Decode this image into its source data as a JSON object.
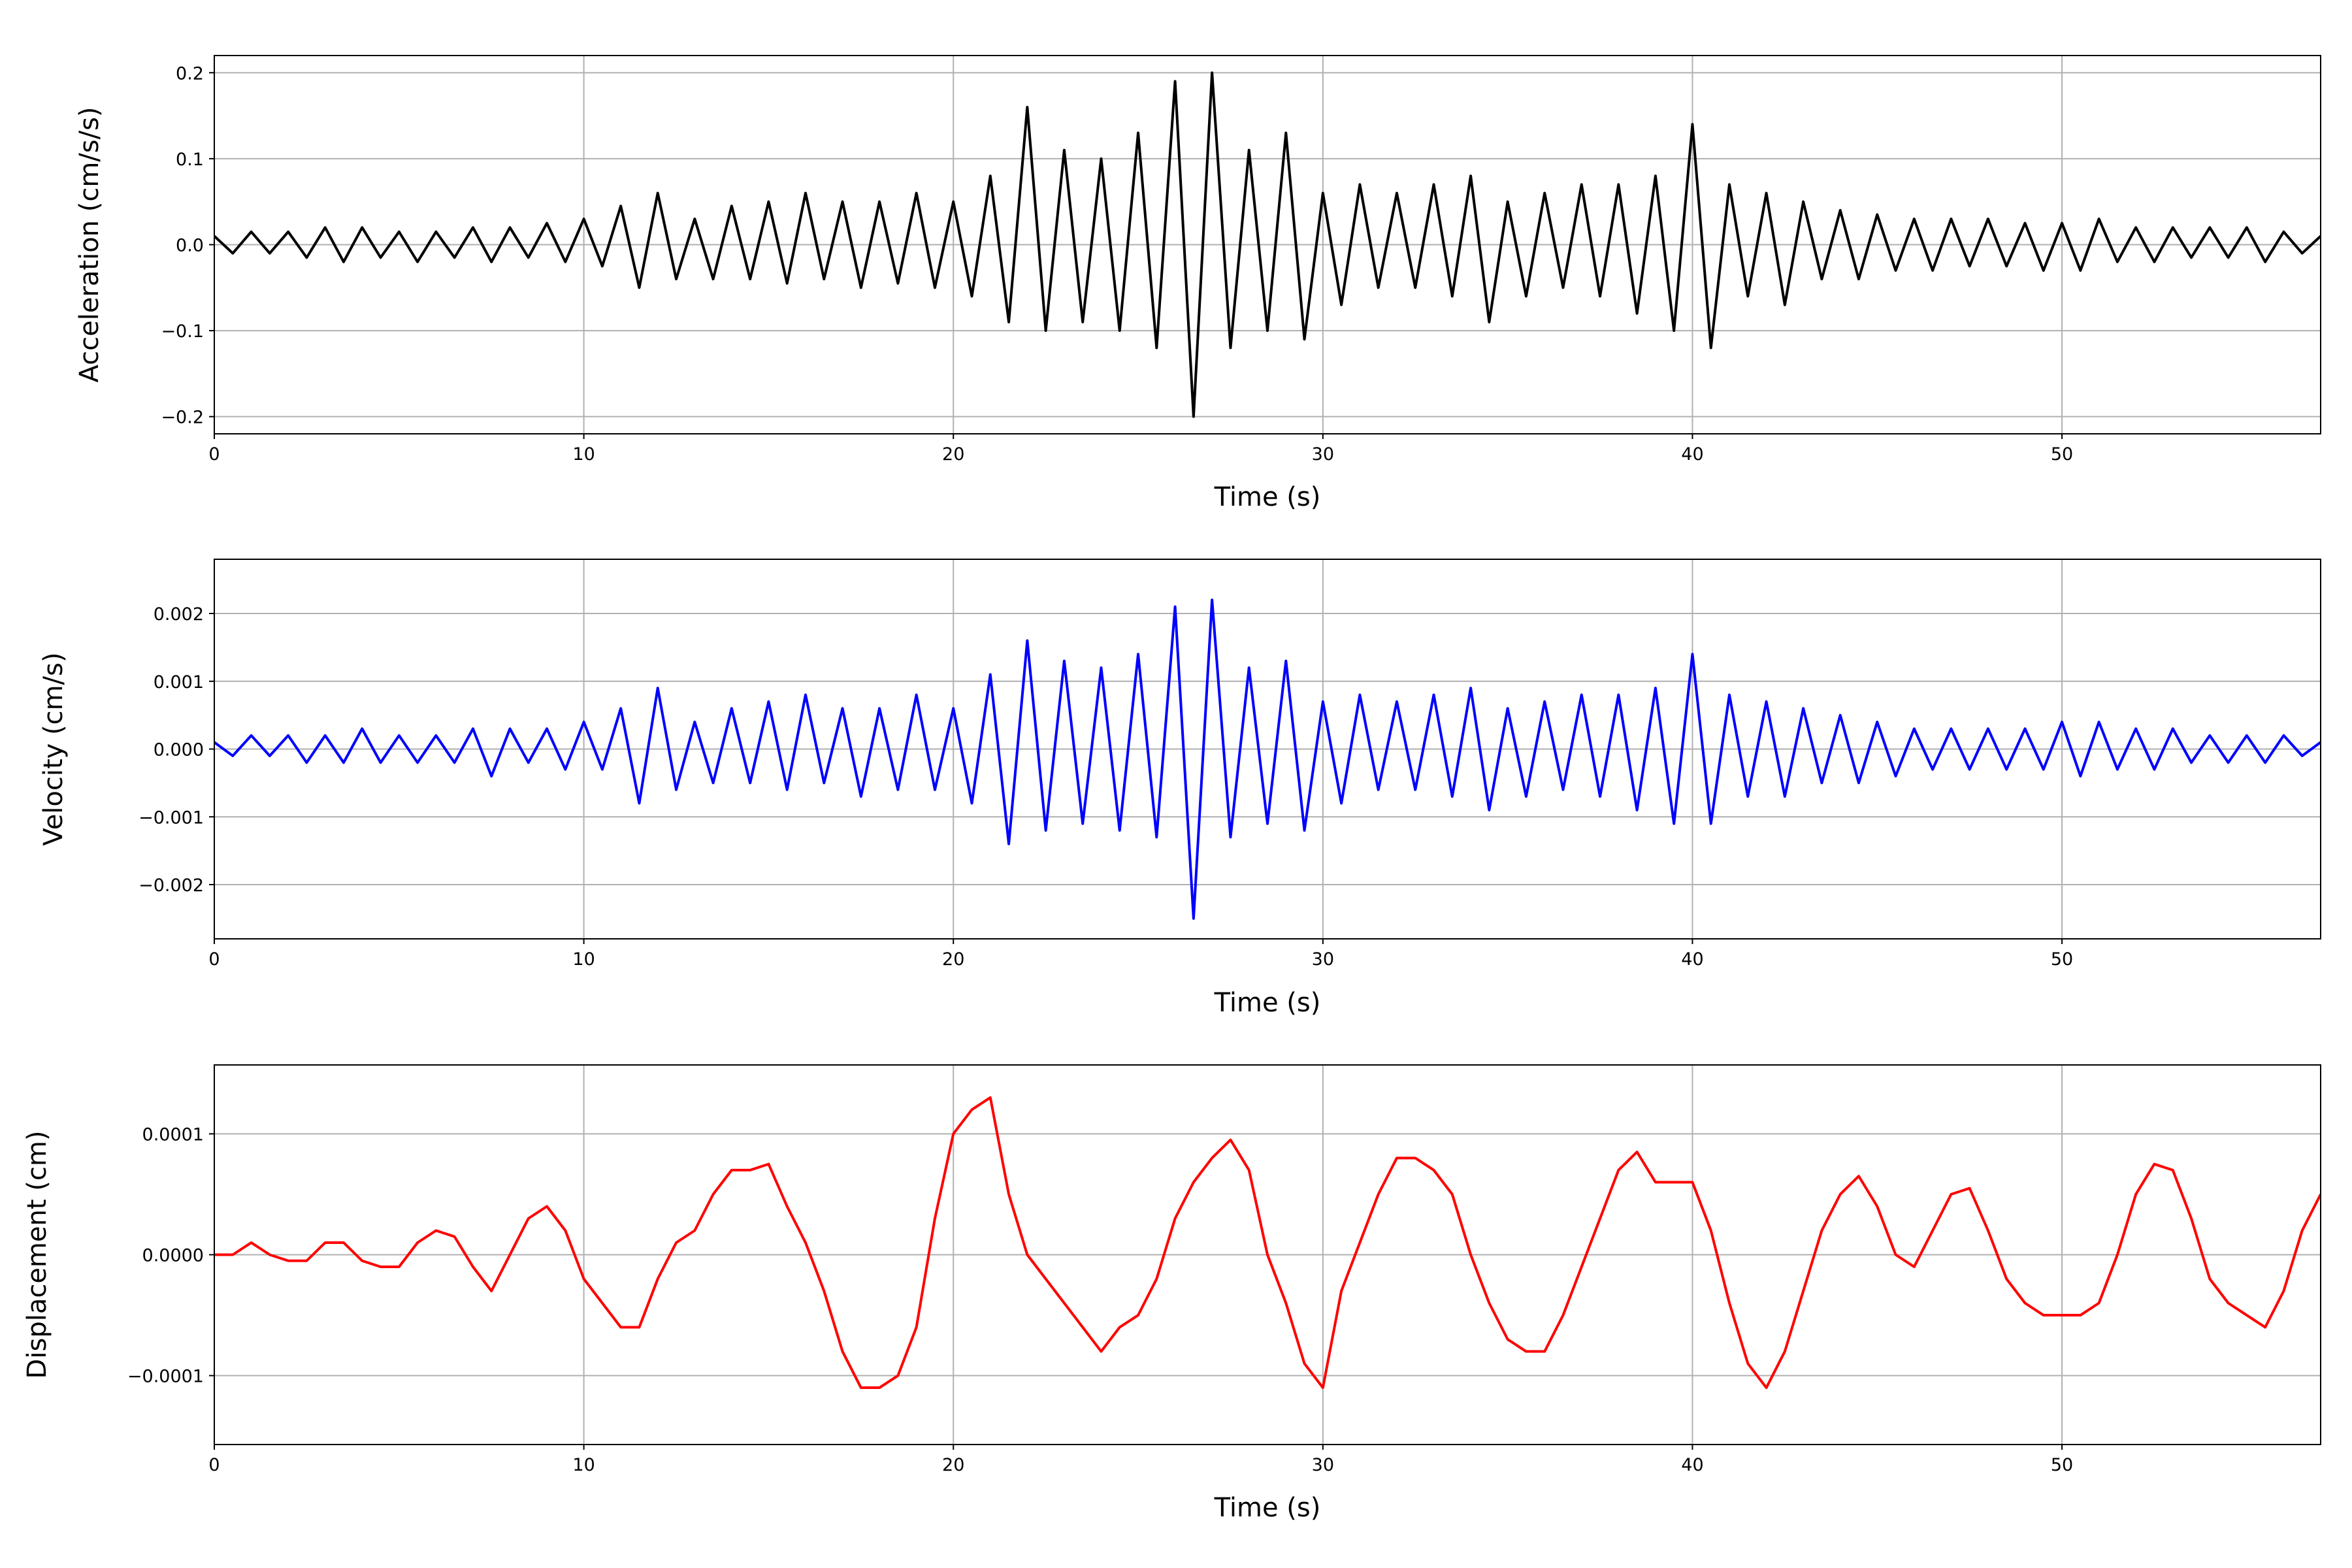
{
  "chart_data": [
    {
      "type": "line",
      "xlabel": "Time (s)",
      "ylabel": "Acceleration (cm/s/s)",
      "color": "#000000",
      "grid": true,
      "xlim": [
        0,
        57
      ],
      "xticks": [
        0,
        10,
        20,
        30,
        40,
        50
      ],
      "ylim": [
        -0.22,
        0.22
      ],
      "yticks": [
        {
          "value": -0.2,
          "label": "−0.2"
        },
        {
          "value": -0.1,
          "label": "−0.1"
        },
        {
          "value": 0,
          "label": "0.0"
        },
        {
          "value": 0.1,
          "label": "0.1"
        },
        {
          "value": 0.2,
          "label": "0.2"
        }
      ],
      "x": [
        0,
        0.5,
        1,
        1.5,
        2,
        2.5,
        3,
        3.5,
        4,
        4.5,
        5,
        5.5,
        6,
        6.5,
        7,
        7.5,
        8,
        8.5,
        9,
        9.5,
        10,
        10.5,
        11,
        11.5,
        12,
        12.5,
        13,
        13.5,
        14,
        14.5,
        15,
        15.5,
        16,
        16.5,
        17,
        17.5,
        18,
        18.5,
        19,
        19.5,
        20,
        20.5,
        21,
        21.5,
        22,
        22.5,
        23,
        23.5,
        24,
        24.5,
        25,
        25.5,
        26,
        26.5,
        27,
        27.5,
        28,
        28.5,
        29,
        29.5,
        30,
        30.5,
        31,
        31.5,
        32,
        32.5,
        33,
        33.5,
        34,
        34.5,
        35,
        35.5,
        36,
        36.5,
        37,
        37.5,
        38,
        38.5,
        39,
        39.5,
        40,
        40.5,
        41,
        41.5,
        42,
        42.5,
        43,
        43.5,
        44,
        44.5,
        45,
        45.5,
        46,
        46.5,
        47,
        47.5,
        48,
        48.5,
        49,
        49.5,
        50,
        50.5,
        51,
        51.5,
        52,
        52.5,
        53,
        53.5,
        54,
        54.5,
        55,
        55.5,
        56,
        56.5,
        57
      ],
      "values": [
        0.01,
        -0.01,
        0.015,
        -0.01,
        0.015,
        -0.015,
        0.02,
        -0.02,
        0.02,
        -0.015,
        0.015,
        -0.02,
        0.015,
        -0.015,
        0.02,
        -0.02,
        0.02,
        -0.015,
        0.025,
        -0.02,
        0.03,
        -0.025,
        0.045,
        -0.05,
        0.06,
        -0.04,
        0.03,
        -0.04,
        0.045,
        -0.04,
        0.05,
        -0.045,
        0.06,
        -0.04,
        0.05,
        -0.05,
        0.05,
        -0.045,
        0.06,
        -0.05,
        0.05,
        -0.06,
        0.08,
        -0.09,
        0.16,
        -0.1,
        0.11,
        -0.09,
        0.1,
        -0.1,
        0.13,
        -0.12,
        0.19,
        -0.2,
        0.2,
        -0.12,
        0.11,
        -0.1,
        0.13,
        -0.11,
        0.06,
        -0.07,
        0.07,
        -0.05,
        0.06,
        -0.05,
        0.07,
        -0.06,
        0.08,
        -0.09,
        0.05,
        -0.06,
        0.06,
        -0.05,
        0.07,
        -0.06,
        0.07,
        -0.08,
        0.08,
        -0.1,
        0.14,
        -0.12,
        0.07,
        -0.06,
        0.06,
        -0.07,
        0.05,
        -0.04,
        0.04,
        -0.04,
        0.035,
        -0.03,
        0.03,
        -0.03,
        0.03,
        -0.025,
        0.03,
        -0.025,
        0.025,
        -0.03,
        0.025,
        -0.03,
        0.03,
        -0.02,
        0.02,
        -0.02,
        0.02,
        -0.015,
        0.02,
        -0.015,
        0.02,
        -0.02,
        0.015,
        -0.01,
        0.01
      ]
    },
    {
      "type": "line",
      "xlabel": "Time (s)",
      "ylabel": "Velocity (cm/s)",
      "color": "#0000ff",
      "grid": true,
      "xlim": [
        0,
        57
      ],
      "xticks": [
        0,
        10,
        20,
        30,
        40,
        50
      ],
      "ylim": [
        -0.0028,
        0.0028
      ],
      "yticks": [
        {
          "value": -0.002,
          "label": "−0.002"
        },
        {
          "value": -0.001,
          "label": "−0.001"
        },
        {
          "value": 0,
          "label": "0.000"
        },
        {
          "value": 0.001,
          "label": "0.001"
        },
        {
          "value": 0.002,
          "label": "0.002"
        }
      ],
      "x": [
        0,
        0.5,
        1,
        1.5,
        2,
        2.5,
        3,
        3.5,
        4,
        4.5,
        5,
        5.5,
        6,
        6.5,
        7,
        7.5,
        8,
        8.5,
        9,
        9.5,
        10,
        10.5,
        11,
        11.5,
        12,
        12.5,
        13,
        13.5,
        14,
        14.5,
        15,
        15.5,
        16,
        16.5,
        17,
        17.5,
        18,
        18.5,
        19,
        19.5,
        20,
        20.5,
        21,
        21.5,
        22,
        22.5,
        23,
        23.5,
        24,
        24.5,
        25,
        25.5,
        26,
        26.5,
        27,
        27.5,
        28,
        28.5,
        29,
        29.5,
        30,
        30.5,
        31,
        31.5,
        32,
        32.5,
        33,
        33.5,
        34,
        34.5,
        35,
        35.5,
        36,
        36.5,
        37,
        37.5,
        38,
        38.5,
        39,
        39.5,
        40,
        40.5,
        41,
        41.5,
        42,
        42.5,
        43,
        43.5,
        44,
        44.5,
        45,
        45.5,
        46,
        46.5,
        47,
        47.5,
        48,
        48.5,
        49,
        49.5,
        50,
        50.5,
        51,
        51.5,
        52,
        52.5,
        53,
        53.5,
        54,
        54.5,
        55,
        55.5,
        56,
        56.5,
        57
      ],
      "values": [
        0.0001,
        -0.0001,
        0.0002,
        -0.0001,
        0.0002,
        -0.0002,
        0.0002,
        -0.0002,
        0.0003,
        -0.0002,
        0.0002,
        -0.0002,
        0.0002,
        -0.0002,
        0.0003,
        -0.0004,
        0.0003,
        -0.0002,
        0.0003,
        -0.0003,
        0.0004,
        -0.0003,
        0.0006,
        -0.0008,
        0.0009,
        -0.0006,
        0.0004,
        -0.0005,
        0.0006,
        -0.0005,
        0.0007,
        -0.0006,
        0.0008,
        -0.0005,
        0.0006,
        -0.0007,
        0.0006,
        -0.0006,
        0.0008,
        -0.0006,
        0.0006,
        -0.0008,
        0.0011,
        -0.0014,
        0.0016,
        -0.0012,
        0.0013,
        -0.0011,
        0.0012,
        -0.0012,
        0.0014,
        -0.0013,
        0.0021,
        -0.0025,
        0.0022,
        -0.0013,
        0.0012,
        -0.0011,
        0.0013,
        -0.0012,
        0.0007,
        -0.0008,
        0.0008,
        -0.0006,
        0.0007,
        -0.0006,
        0.0008,
        -0.0007,
        0.0009,
        -0.0009,
        0.0006,
        -0.0007,
        0.0007,
        -0.0006,
        0.0008,
        -0.0007,
        0.0008,
        -0.0009,
        0.0009,
        -0.0011,
        0.0014,
        -0.0011,
        0.0008,
        -0.0007,
        0.0007,
        -0.0007,
        0.0006,
        -0.0005,
        0.0005,
        -0.0005,
        0.0004,
        -0.0004,
        0.0003,
        -0.0003,
        0.0003,
        -0.0003,
        0.0003,
        -0.0003,
        0.0003,
        -0.0003,
        0.0004,
        -0.0004,
        0.0004,
        -0.0003,
        0.0003,
        -0.0003,
        0.0003,
        -0.0002,
        0.0002,
        -0.0002,
        0.0002,
        -0.0002,
        0.0002,
        -0.0001,
        0.0001
      ]
    },
    {
      "type": "line",
      "xlabel": "Time (s)",
      "ylabel": "Displacement (cm)",
      "color": "#ff0000",
      "grid": true,
      "xlim": [
        0,
        57
      ],
      "xticks": [
        0,
        10,
        20,
        30,
        40,
        50
      ],
      "ylim": [
        -0.000157,
        0.000157
      ],
      "yticks": [
        {
          "value": -0.0001,
          "label": "−0.0001"
        },
        {
          "value": 0,
          "label": "0.0000"
        },
        {
          "value": 0.0001,
          "label": "0.0001"
        }
      ],
      "x": [
        0,
        0.5,
        1,
        1.5,
        2,
        2.5,
        3,
        3.5,
        4,
        4.5,
        5,
        5.5,
        6,
        6.5,
        7,
        7.5,
        8,
        8.5,
        9,
        9.5,
        10,
        10.5,
        11,
        11.5,
        12,
        12.5,
        13,
        13.5,
        14,
        14.5,
        15,
        15.5,
        16,
        16.5,
        17,
        17.5,
        18,
        18.5,
        19,
        19.5,
        20,
        20.5,
        21,
        21.5,
        22,
        22.5,
        23,
        23.5,
        24,
        24.5,
        25,
        25.5,
        26,
        26.5,
        27,
        27.5,
        28,
        28.5,
        29,
        29.5,
        30,
        30.5,
        31,
        31.5,
        32,
        32.5,
        33,
        33.5,
        34,
        34.5,
        35,
        35.5,
        36,
        36.5,
        37,
        37.5,
        38,
        38.5,
        39,
        39.5,
        40,
        40.5,
        41,
        41.5,
        42,
        42.5,
        43,
        43.5,
        44,
        44.5,
        45,
        45.5,
        46,
        46.5,
        47,
        47.5,
        48,
        48.5,
        49,
        49.5,
        50,
        50.5,
        51,
        51.5,
        52,
        52.5,
        53,
        53.5,
        54,
        54.5,
        55,
        55.5,
        56,
        56.5,
        57
      ],
      "values": [
        0,
        0,
        1e-05,
        0,
        -5e-06,
        -5e-06,
        1e-05,
        1e-05,
        -5e-06,
        -1e-05,
        -1e-05,
        1e-05,
        2e-05,
        1.5e-05,
        -1e-05,
        -3e-05,
        0,
        3e-05,
        4e-05,
        2e-05,
        -2e-05,
        -4e-05,
        -6e-05,
        -6e-05,
        -2e-05,
        1e-05,
        2e-05,
        5e-05,
        7e-05,
        7e-05,
        7.5e-05,
        4e-05,
        1e-05,
        -3e-05,
        -8e-05,
        -0.00011,
        -0.00011,
        -0.0001,
        -6e-05,
        3e-05,
        0.0001,
        0.00012,
        0.00013,
        5e-05,
        0,
        -2e-05,
        -4e-05,
        -6e-05,
        -8e-05,
        -6e-05,
        -5e-05,
        -2e-05,
        3e-05,
        6e-05,
        8e-05,
        9.5e-05,
        7e-05,
        0,
        -4e-05,
        -9e-05,
        -0.00011,
        -3e-05,
        1e-05,
        5e-05,
        8e-05,
        8e-05,
        7e-05,
        5e-05,
        0,
        -4e-05,
        -7e-05,
        -8e-05,
        -8e-05,
        -5e-05,
        -1e-05,
        3e-05,
        7e-05,
        8.5e-05,
        6e-05,
        6e-05,
        6e-05,
        2e-05,
        -4e-05,
        -9e-05,
        -0.00011,
        -8e-05,
        -3e-05,
        2e-05,
        5e-05,
        6.5e-05,
        4e-05,
        0,
        -1e-05,
        2e-05,
        5e-05,
        5.5e-05,
        2e-05,
        -2e-05,
        -4e-05,
        -5e-05,
        -5e-05,
        -5e-05,
        -4e-05,
        0,
        5e-05,
        7.5e-05,
        7e-05,
        3e-05,
        -2e-05,
        -4e-05,
        -5e-05,
        -6e-05,
        -3e-05,
        2e-05,
        5e-05
      ]
    }
  ]
}
